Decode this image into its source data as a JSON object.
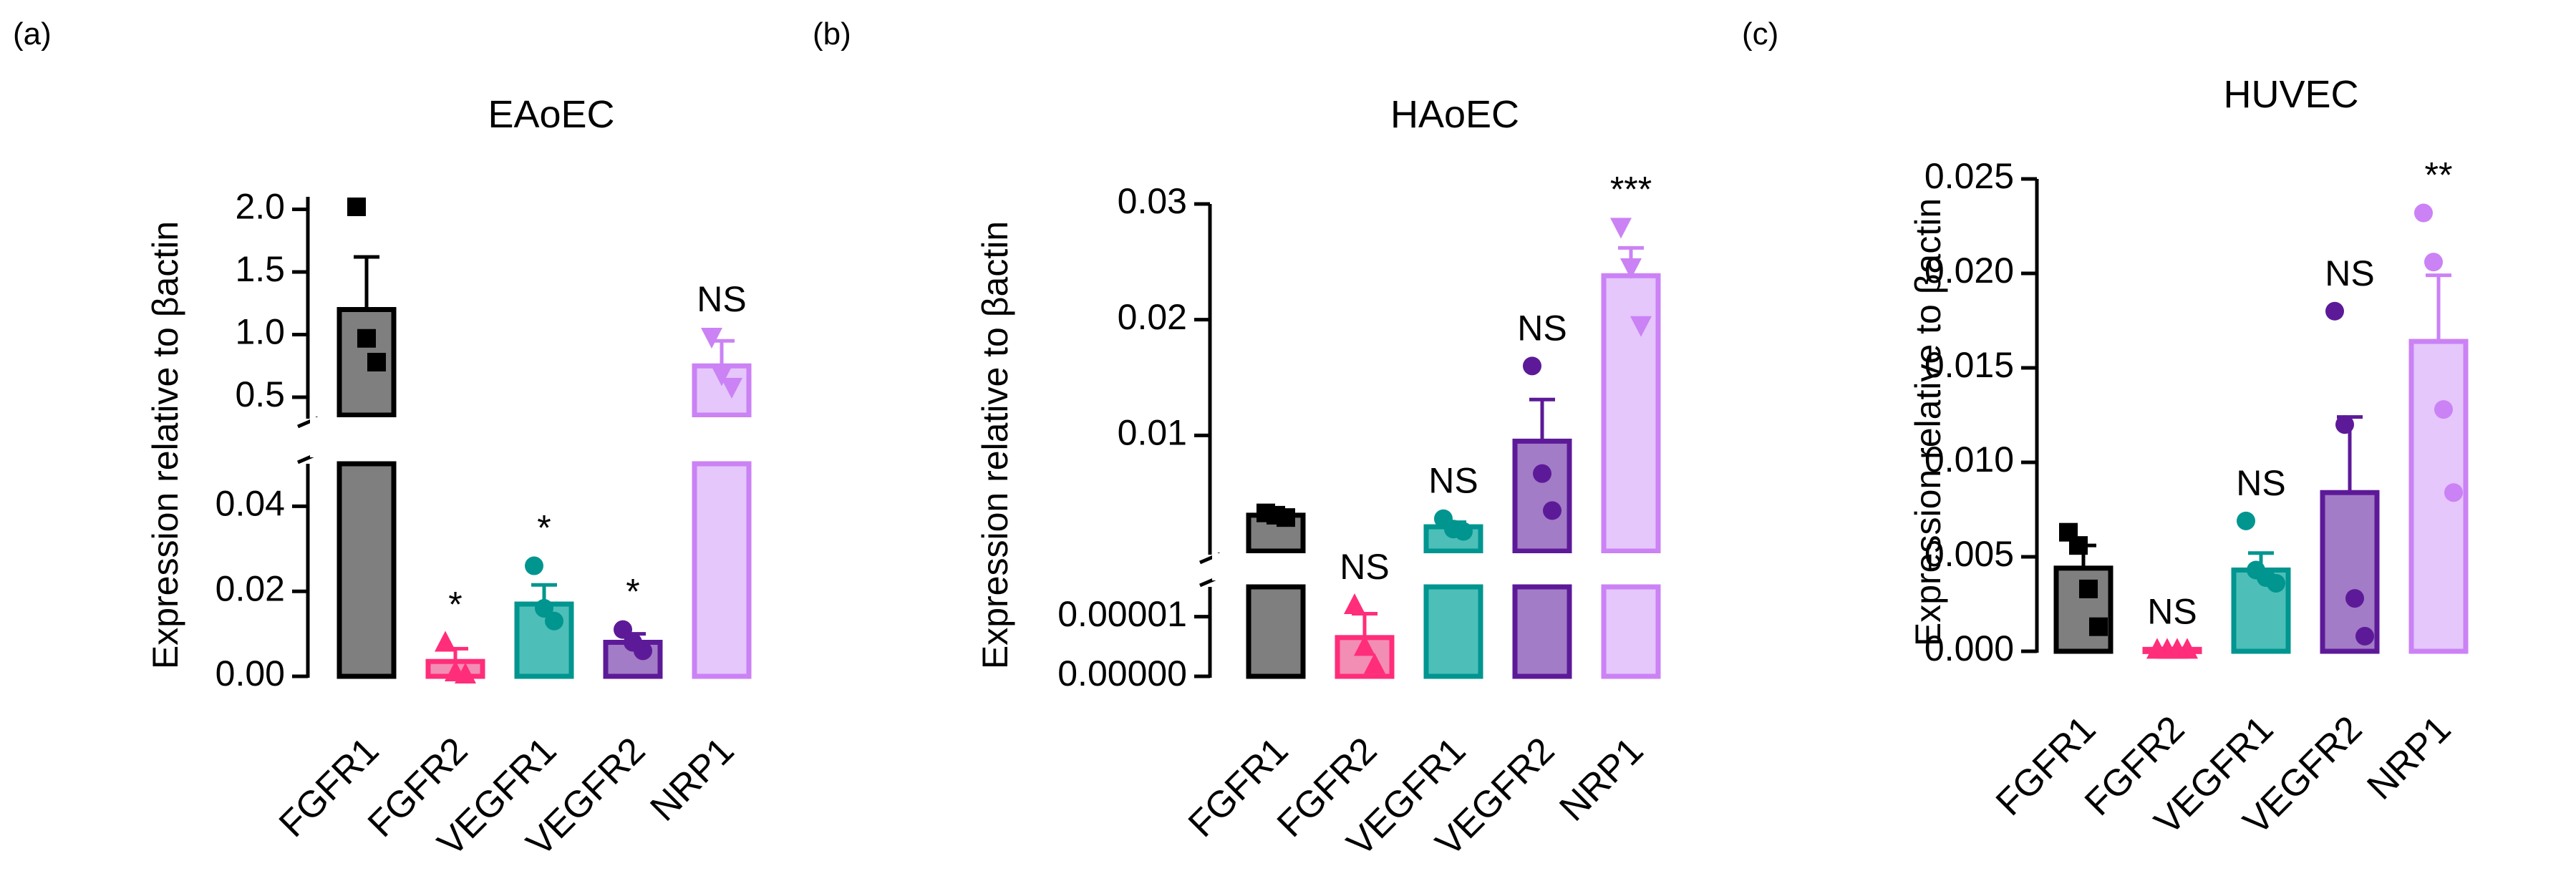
{
  "colors": {
    "FGFR1": {
      "fill": "#7f7f7f",
      "stroke": "#000000",
      "point": "#000000"
    },
    "FGFR2": {
      "fill": "#f28db4",
      "stroke": "#ff2d7a",
      "point": "#ff2d7a"
    },
    "VEGFR1": {
      "fill": "#4dbfb8",
      "stroke": "#00958f",
      "point": "#00958f"
    },
    "VEGFR2": {
      "fill": "#a27cc6",
      "stroke": "#5d1a98",
      "point": "#5d1a98"
    },
    "NRP1": {
      "fill": "#e5c7fb",
      "stroke": "#cb82f5",
      "point": "#cb82f5"
    }
  },
  "chart_data": [
    {
      "type": "bar",
      "panel": "(a)",
      "title": "EAoEC",
      "ylabel": "Expression relative to βactin",
      "categories": [
        "FGFR1",
        "FGFR2",
        "VEGFR1",
        "VEGFR2",
        "NRP1"
      ],
      "values": [
        1.2,
        0.0035,
        0.017,
        0.008,
        0.75
      ],
      "sem": [
        0.42,
        0.003,
        0.0045,
        0.002,
        0.2
      ],
      "points": [
        [
          2.02,
          0.97,
          0.78
        ],
        [
          0.008,
          0.001,
          0.0005
        ],
        [
          0.026,
          0.016,
          0.013
        ],
        [
          0.011,
          0.008,
          0.006
        ],
        [
          0.98,
          0.68,
          0.58
        ]
      ],
      "markers": [
        "square",
        "triangle-up",
        "circle",
        "circle",
        "triangle-down"
      ],
      "significance": [
        "",
        "*",
        "*",
        "*",
        "NS"
      ],
      "y_axis": {
        "broken": true,
        "lower_range": [
          0,
          0.05
        ],
        "upper_range": [
          0.3,
          2.1
        ]
      },
      "ticks_lower": [
        "0.00",
        "0.02",
        "0.04"
      ],
      "ticks_upper": [
        "0.5",
        "1.0",
        "1.5",
        "2.0"
      ]
    },
    {
      "type": "bar",
      "panel": "(b)",
      "title": "HAoEC",
      "ylabel": "Expression relative to βactin",
      "categories": [
        "FGFR1",
        "FGFR2",
        "VEGFR1",
        "VEGFR2",
        "NRP1"
      ],
      "values": [
        0.0031,
        6.5e-06,
        0.0021,
        0.0095,
        0.0238
      ],
      "sem": [
        0.0002,
        4e-06,
        0.0004,
        0.0036,
        0.0024
      ],
      "points": [
        [
          0.0033,
          0.0031,
          0.0029
        ],
        [
          1.2e-05,
          5e-06,
          2e-06
        ],
        [
          0.0028,
          0.0019,
          0.0017
        ],
        [
          0.016,
          0.0067,
          0.0035
        ],
        [
          0.028,
          0.0245,
          0.0195
        ]
      ],
      "markers": [
        "square",
        "triangle-up",
        "circle",
        "circle",
        "triangle-down"
      ],
      "significance": [
        "",
        "NS",
        "NS",
        "NS",
        "***"
      ],
      "y_axis": {
        "broken": true,
        "lower_range": [
          0,
          1.5e-05
        ],
        "upper_range": [
          0,
          0.03
        ]
      },
      "ticks_lower": [
        "0.00000",
        "0.00001"
      ],
      "ticks_upper": [
        "0.01",
        "0.02",
        "0.03"
      ]
    },
    {
      "type": "bar",
      "panel": "(c)",
      "title": "HUVEC",
      "ylabel": "Expression relative to βactin",
      "categories": [
        "FGFR1",
        "FGFR2",
        "VEGFR1",
        "VEGFR2",
        "NRP1"
      ],
      "values": [
        0.0044,
        0.0001,
        0.0043,
        0.0084,
        0.0164
      ],
      "sem": [
        0.0012,
        5e-05,
        0.0009,
        0.004,
        0.0035
      ],
      "points": [
        [
          0.0063,
          0.0056,
          0.0033,
          0.0013
        ],
        [
          0.0001,
          0.0001,
          0.0001,
          0.0001
        ],
        [
          0.0069,
          0.0043,
          0.0039,
          0.0036
        ],
        [
          0.018,
          0.012,
          0.0028,
          0.0008
        ],
        [
          0.0232,
          0.0206,
          0.0128,
          0.0084
        ]
      ],
      "markers": [
        "square",
        "triangle-up",
        "circle",
        "circle",
        "circle"
      ],
      "significance": [
        "",
        "NS",
        "NS",
        "NS",
        "**"
      ],
      "y_axis": {
        "broken": false,
        "range": [
          0,
          0.025
        ]
      },
      "ticks": [
        "0.000",
        "0.005",
        "0.010",
        "0.015",
        "0.020",
        "0.025"
      ]
    }
  ]
}
